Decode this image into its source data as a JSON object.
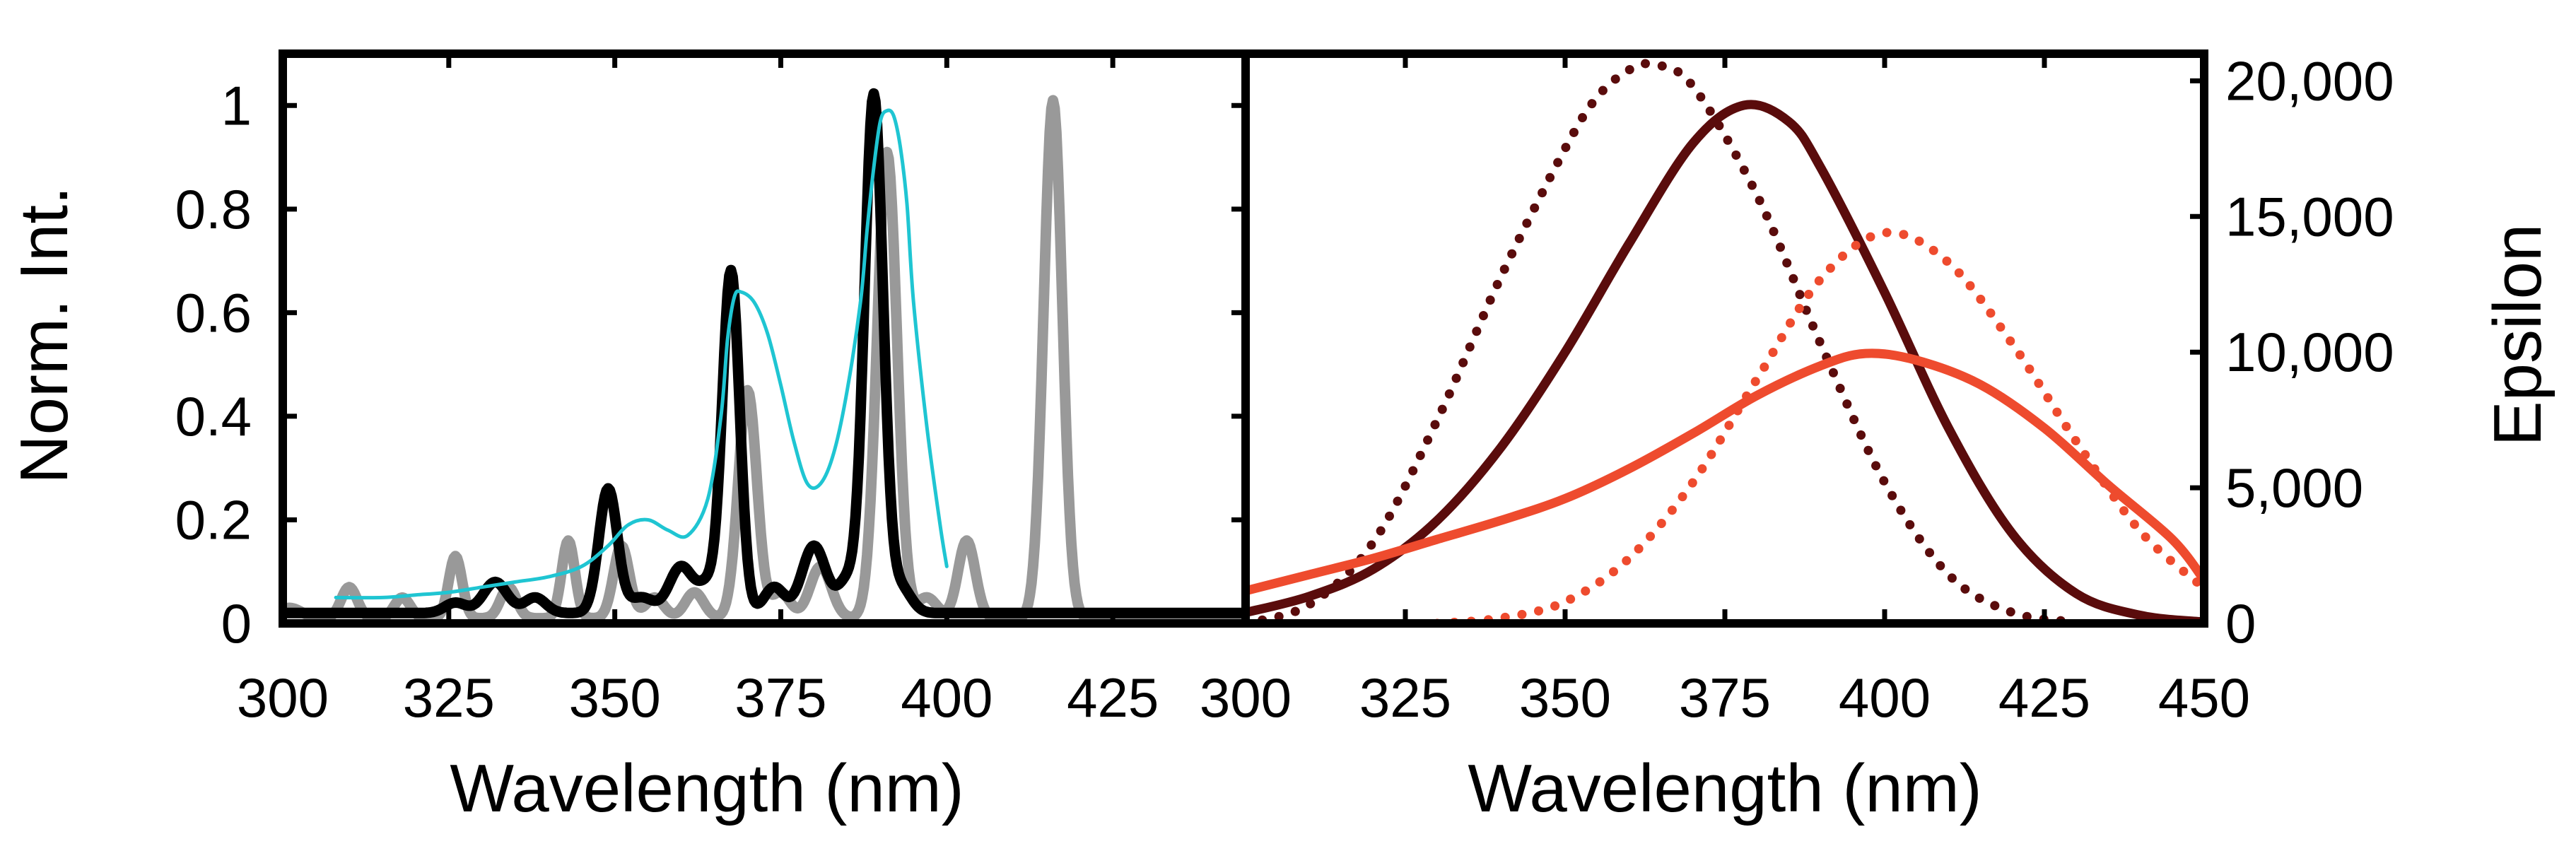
{
  "chart_data": [
    {
      "type": "line",
      "panel": "left",
      "xlabel": "Wavelength (nm)",
      "ylabel": "Norm. Int.",
      "xlim": [
        300,
        445
      ],
      "ylim": [
        0,
        1.1
      ],
      "xticks": [
        300,
        325,
        350,
        375,
        400,
        425
      ],
      "xtick_labels": [
        "300",
        "325",
        "350",
        "375",
        "400",
        "425"
      ],
      "yticks": [
        0,
        0.2,
        0.4,
        0.6,
        0.8,
        1
      ],
      "ytick_labels": [
        "0",
        "0.2",
        "0.4",
        "0.6",
        "0.8",
        "1"
      ],
      "series": [
        {
          "name": "black-spectrum",
          "color": "#000000",
          "style": "solid-thick",
          "peaks": [
            {
              "x": 326,
              "y": 0.02,
              "w": 1.6
            },
            {
              "x": 332,
              "y": 0.06,
              "w": 1.8
            },
            {
              "x": 338,
              "y": 0.03,
              "w": 1.6
            },
            {
              "x": 349,
              "y": 0.24,
              "w": 1.4
            },
            {
              "x": 354,
              "y": 0.03,
              "w": 1.8
            },
            {
              "x": 360,
              "y": 0.09,
              "w": 1.8
            },
            {
              "x": 364,
              "y": 0.05,
              "w": 1.4
            },
            {
              "x": 367.5,
              "y": 0.66,
              "w": 1.3
            },
            {
              "x": 374,
              "y": 0.05,
              "w": 1.5
            },
            {
              "x": 380,
              "y": 0.13,
              "w": 1.8
            },
            {
              "x": 385,
              "y": 0.06,
              "w": 1.4
            },
            {
              "x": 389,
              "y": 1.0,
              "w": 1.4
            },
            {
              "x": 393,
              "y": 0.05,
              "w": 1.6
            }
          ],
          "baseline": 0.02,
          "x_range": [
            300,
            445
          ]
        },
        {
          "name": "gray-spectrum",
          "color": "#999999",
          "style": "solid-thick",
          "peaks": [
            {
              "x": 301,
              "y": 0.02,
              "w": 1.8
            },
            {
              "x": 310,
              "y": 0.06,
              "w": 1.2
            },
            {
              "x": 318,
              "y": 0.04,
              "w": 1.2
            },
            {
              "x": 326,
              "y": 0.12,
              "w": 1.0
            },
            {
              "x": 334,
              "y": 0.06,
              "w": 1.2
            },
            {
              "x": 343,
              "y": 0.15,
              "w": 1.0
            },
            {
              "x": 351,
              "y": 0.14,
              "w": 1.2
            },
            {
              "x": 356,
              "y": 0.04,
              "w": 1.4
            },
            {
              "x": 362,
              "y": 0.05,
              "w": 1.4
            },
            {
              "x": 370,
              "y": 0.44,
              "w": 1.4
            },
            {
              "x": 375,
              "y": 0.05,
              "w": 1.4
            },
            {
              "x": 381,
              "y": 0.1,
              "w": 1.6
            },
            {
              "x": 391,
              "y": 0.9,
              "w": 1.5
            },
            {
              "x": 397,
              "y": 0.04,
              "w": 1.5
            },
            {
              "x": 403,
              "y": 0.15,
              "w": 1.3
            },
            {
              "x": 416,
              "y": 1.0,
              "w": 1.4
            }
          ],
          "baseline": 0.01,
          "x_range": [
            300,
            445
          ]
        },
        {
          "name": "cyan-spectrum",
          "color": "#1fc5d2",
          "style": "solid-thin",
          "x": [
            308,
            315,
            320,
            325,
            330,
            335,
            340,
            345,
            349,
            352,
            355,
            358,
            361,
            364,
            366,
            367,
            368,
            369,
            371,
            373,
            375,
            377,
            379,
            381,
            383,
            385,
            387,
            388,
            389,
            390,
            391,
            392,
            393,
            394,
            395,
            397,
            399,
            400
          ],
          "y": [
            0.05,
            0.05,
            0.055,
            0.06,
            0.07,
            0.08,
            0.09,
            0.11,
            0.15,
            0.19,
            0.2,
            0.18,
            0.17,
            0.24,
            0.4,
            0.55,
            0.63,
            0.64,
            0.62,
            0.56,
            0.46,
            0.35,
            0.27,
            0.27,
            0.33,
            0.45,
            0.62,
            0.76,
            0.88,
            0.97,
            0.99,
            0.98,
            0.92,
            0.81,
            0.62,
            0.38,
            0.19,
            0.11
          ]
        }
      ]
    },
    {
      "type": "line",
      "panel": "right",
      "xlabel": "Wavelength (nm)",
      "ylabel": "Epsilon",
      "xlim": [
        300,
        450
      ],
      "ylim": [
        0,
        21000
      ],
      "xticks": [
        300,
        325,
        350,
        375,
        400,
        425,
        450
      ],
      "xtick_labels": [
        "300",
        "325",
        "350",
        "375",
        "400",
        "425",
        "450"
      ],
      "yticks": [
        0,
        5000,
        10000,
        15000,
        20000
      ],
      "ytick_labels": [
        "0",
        "5,000",
        "10,000",
        "15,000",
        "20,000"
      ],
      "series": [
        {
          "name": "dark-red-solid",
          "color": "#5a0c0c",
          "style": "solid",
          "x": [
            300,
            310,
            320,
            330,
            340,
            350,
            360,
            370,
            378,
            385,
            390,
            400,
            410,
            420,
            430,
            440,
            450
          ],
          "y": [
            400,
            1000,
            2000,
            3800,
            6500,
            10000,
            14000,
            17700,
            19100,
            18500,
            16800,
            12200,
            7200,
            3300,
            1100,
            300,
            50
          ]
        },
        {
          "name": "dark-red-dotted",
          "color": "#5a0c0c",
          "style": "dotted",
          "x": [
            300,
            310,
            320,
            330,
            340,
            350,
            355,
            360,
            364,
            370,
            380,
            390,
            400,
            410,
            420,
            430
          ],
          "y": [
            0,
            700,
            3000,
            7500,
            12800,
            17500,
            19400,
            20400,
            20600,
            19800,
            15800,
            10300,
            5200,
            1800,
            400,
            50
          ]
        },
        {
          "name": "orange-solid",
          "color": "#ee4b2e",
          "style": "solid",
          "x": [
            300,
            310,
            320,
            330,
            340,
            350,
            360,
            370,
            380,
            390,
            397,
            405,
            415,
            425,
            435,
            445,
            450
          ],
          "y": [
            1200,
            1800,
            2400,
            3100,
            3800,
            4600,
            5700,
            7000,
            8400,
            9500,
            9950,
            9700,
            8800,
            7200,
            5100,
            3100,
            1600
          ]
        },
        {
          "name": "orange-dotted",
          "color": "#ee4b2e",
          "style": "dotted",
          "x": [
            330,
            340,
            350,
            360,
            370,
            380,
            390,
            400,
            410,
            420,
            430,
            440,
            450
          ],
          "y": [
            0,
            200,
            800,
            2400,
            5200,
            9000,
            12700,
            14400,
            13300,
            10300,
            6700,
            3400,
            1300
          ]
        }
      ]
    }
  ]
}
